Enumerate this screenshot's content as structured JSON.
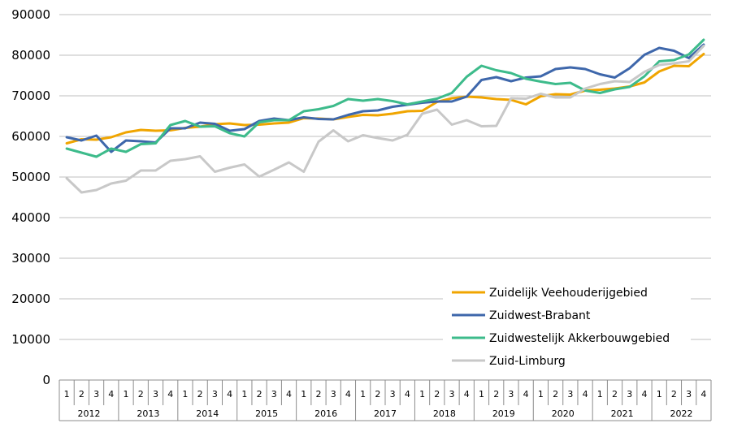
{
  "chart_data": {
    "type": "line",
    "title": "",
    "xlabel": "",
    "ylabel": "",
    "ylim": [
      0,
      90000
    ],
    "yticks": [
      "0",
      "10000",
      "20000",
      "30000",
      "40000",
      "50000",
      "60000",
      "70000",
      "80000",
      "90000"
    ],
    "quarters": [
      "1",
      "2",
      "3",
      "4",
      "1",
      "2",
      "3",
      "4",
      "1",
      "2",
      "3",
      "4",
      "1",
      "2",
      "3",
      "4",
      "1",
      "2",
      "3",
      "4",
      "1",
      "2",
      "3",
      "4",
      "1",
      "2",
      "3",
      "4",
      "1",
      "2",
      "3",
      "4",
      "1",
      "2",
      "3",
      "4",
      "1",
      "2",
      "3",
      "4",
      "1",
      "2",
      "3",
      "4"
    ],
    "years": [
      "2012",
      "2013",
      "2014",
      "2015",
      "2016",
      "2017",
      "2018",
      "2019",
      "2020",
      "2021",
      "2022"
    ],
    "grid": true,
    "legend_position": "bottom-right",
    "series": [
      {
        "name": "Zuidelijk Veehouderijgebied",
        "color": "#f0a500",
        "values": [
          58300,
          59300,
          59200,
          59800,
          61000,
          61600,
          61400,
          61500,
          62100,
          62400,
          63000,
          63200,
          62800,
          62900,
          63200,
          63400,
          64500,
          64400,
          64200,
          64800,
          65300,
          65200,
          65600,
          66200,
          66300,
          68500,
          69400,
          69800,
          69600,
          69200,
          69000,
          67900,
          69900,
          70400,
          70300,
          71300,
          71500,
          71800,
          72300,
          73300,
          76000,
          77400,
          77300,
          80300
        ]
      },
      {
        "name": "Zuidwest-Brabant",
        "color": "#3e67ab",
        "values": [
          59800,
          59000,
          60200,
          56200,
          59000,
          58800,
          58500,
          62000,
          62000,
          63400,
          63100,
          61400,
          61800,
          63800,
          64400,
          64000,
          64700,
          64300,
          64200,
          65300,
          66200,
          66400,
          67300,
          67800,
          68300,
          68600,
          68600,
          69800,
          73900,
          74600,
          73600,
          74500,
          74800,
          76600,
          77000,
          76600,
          75300,
          74500,
          76800,
          80100,
          81800,
          81100,
          79300,
          82600
        ]
      },
      {
        "name": "Zuidwestelijk Akkerbouwgebied",
        "color": "#3dbb8b",
        "values": [
          57000,
          56000,
          55000,
          57000,
          56200,
          58100,
          58300,
          62800,
          63800,
          62400,
          62500,
          60800,
          60000,
          63500,
          64000,
          64000,
          66200,
          66700,
          67500,
          69200,
          68800,
          69200,
          68700,
          67900,
          68600,
          69300,
          70700,
          74700,
          77400,
          76300,
          75600,
          74200,
          73500,
          72900,
          73200,
          71300,
          70700,
          71600,
          72200,
          74800,
          78500,
          78800,
          80200,
          83800
        ]
      },
      {
        "name": "Zuid-Limburg",
        "color": "#c8c8c8",
        "values": [
          49700,
          46200,
          46800,
          48400,
          49100,
          51600,
          51600,
          54000,
          54400,
          55100,
          51300,
          52300,
          53100,
          50100,
          51800,
          53600,
          51300,
          58700,
          61500,
          58800,
          60300,
          59600,
          59000,
          60400,
          65600,
          66600,
          62900,
          64000,
          62500,
          62600,
          69400,
          69300,
          70500,
          69600,
          69600,
          71800,
          72900,
          73600,
          73400,
          75900,
          77600,
          78000,
          78500,
          82300
        ]
      }
    ]
  }
}
